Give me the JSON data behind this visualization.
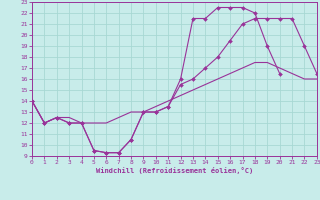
{
  "bg_color": "#c8ecea",
  "grid_color": "#a8d8d4",
  "line_color": "#993399",
  "marker_color": "#993399",
  "xlabel": "Windchill (Refroidissement éolien,°C)",
  "xlabel_color": "#993399",
  "tick_color": "#993399",
  "xmin": 0,
  "xmax": 23,
  "ymin": 9,
  "ymax": 23,
  "yticks": [
    9,
    10,
    11,
    12,
    13,
    14,
    15,
    16,
    17,
    18,
    19,
    20,
    21,
    22,
    23
  ],
  "xticks": [
    0,
    1,
    2,
    3,
    4,
    5,
    6,
    7,
    8,
    9,
    10,
    11,
    12,
    13,
    14,
    15,
    16,
    17,
    18,
    19,
    20,
    21,
    22,
    23
  ],
  "curve1_x": [
    0,
    1,
    2,
    3,
    4,
    5,
    6,
    7,
    8,
    9,
    10,
    11,
    12,
    13,
    14,
    15,
    16,
    17,
    18,
    19,
    20
  ],
  "curve1_y": [
    14,
    12,
    12.5,
    12,
    12,
    9.5,
    9.3,
    9.3,
    10.5,
    13,
    13,
    13.5,
    16,
    21.5,
    21.5,
    22.5,
    22.5,
    22.5,
    22,
    19,
    16.5
  ],
  "curve2_x": [
    0,
    1,
    2,
    3,
    4,
    5,
    6,
    7,
    8,
    9,
    10,
    11,
    12,
    13,
    14,
    15,
    16,
    17,
    18,
    19,
    20,
    21,
    22,
    23
  ],
  "curve2_y": [
    14,
    12,
    12.5,
    12,
    12,
    9.5,
    9.3,
    9.3,
    10.5,
    13,
    13,
    13.5,
    15.5,
    16,
    17,
    18,
    19.5,
    21,
    21.5,
    21.5,
    21.5,
    21.5,
    19,
    16.5
  ],
  "curve3_x": [
    0,
    1,
    2,
    3,
    4,
    5,
    6,
    7,
    8,
    9,
    10,
    11,
    12,
    13,
    14,
    15,
    16,
    17,
    18,
    19,
    20,
    21,
    22,
    23
  ],
  "curve3_y": [
    14,
    12,
    12.5,
    12.5,
    12,
    12,
    12,
    12.5,
    13,
    13,
    13.5,
    14,
    14.5,
    15,
    15.5,
    16,
    16.5,
    17,
    17.5,
    17.5,
    17,
    16.5,
    16,
    16
  ],
  "figwidth": 3.2,
  "figheight": 2.0,
  "dpi": 100
}
